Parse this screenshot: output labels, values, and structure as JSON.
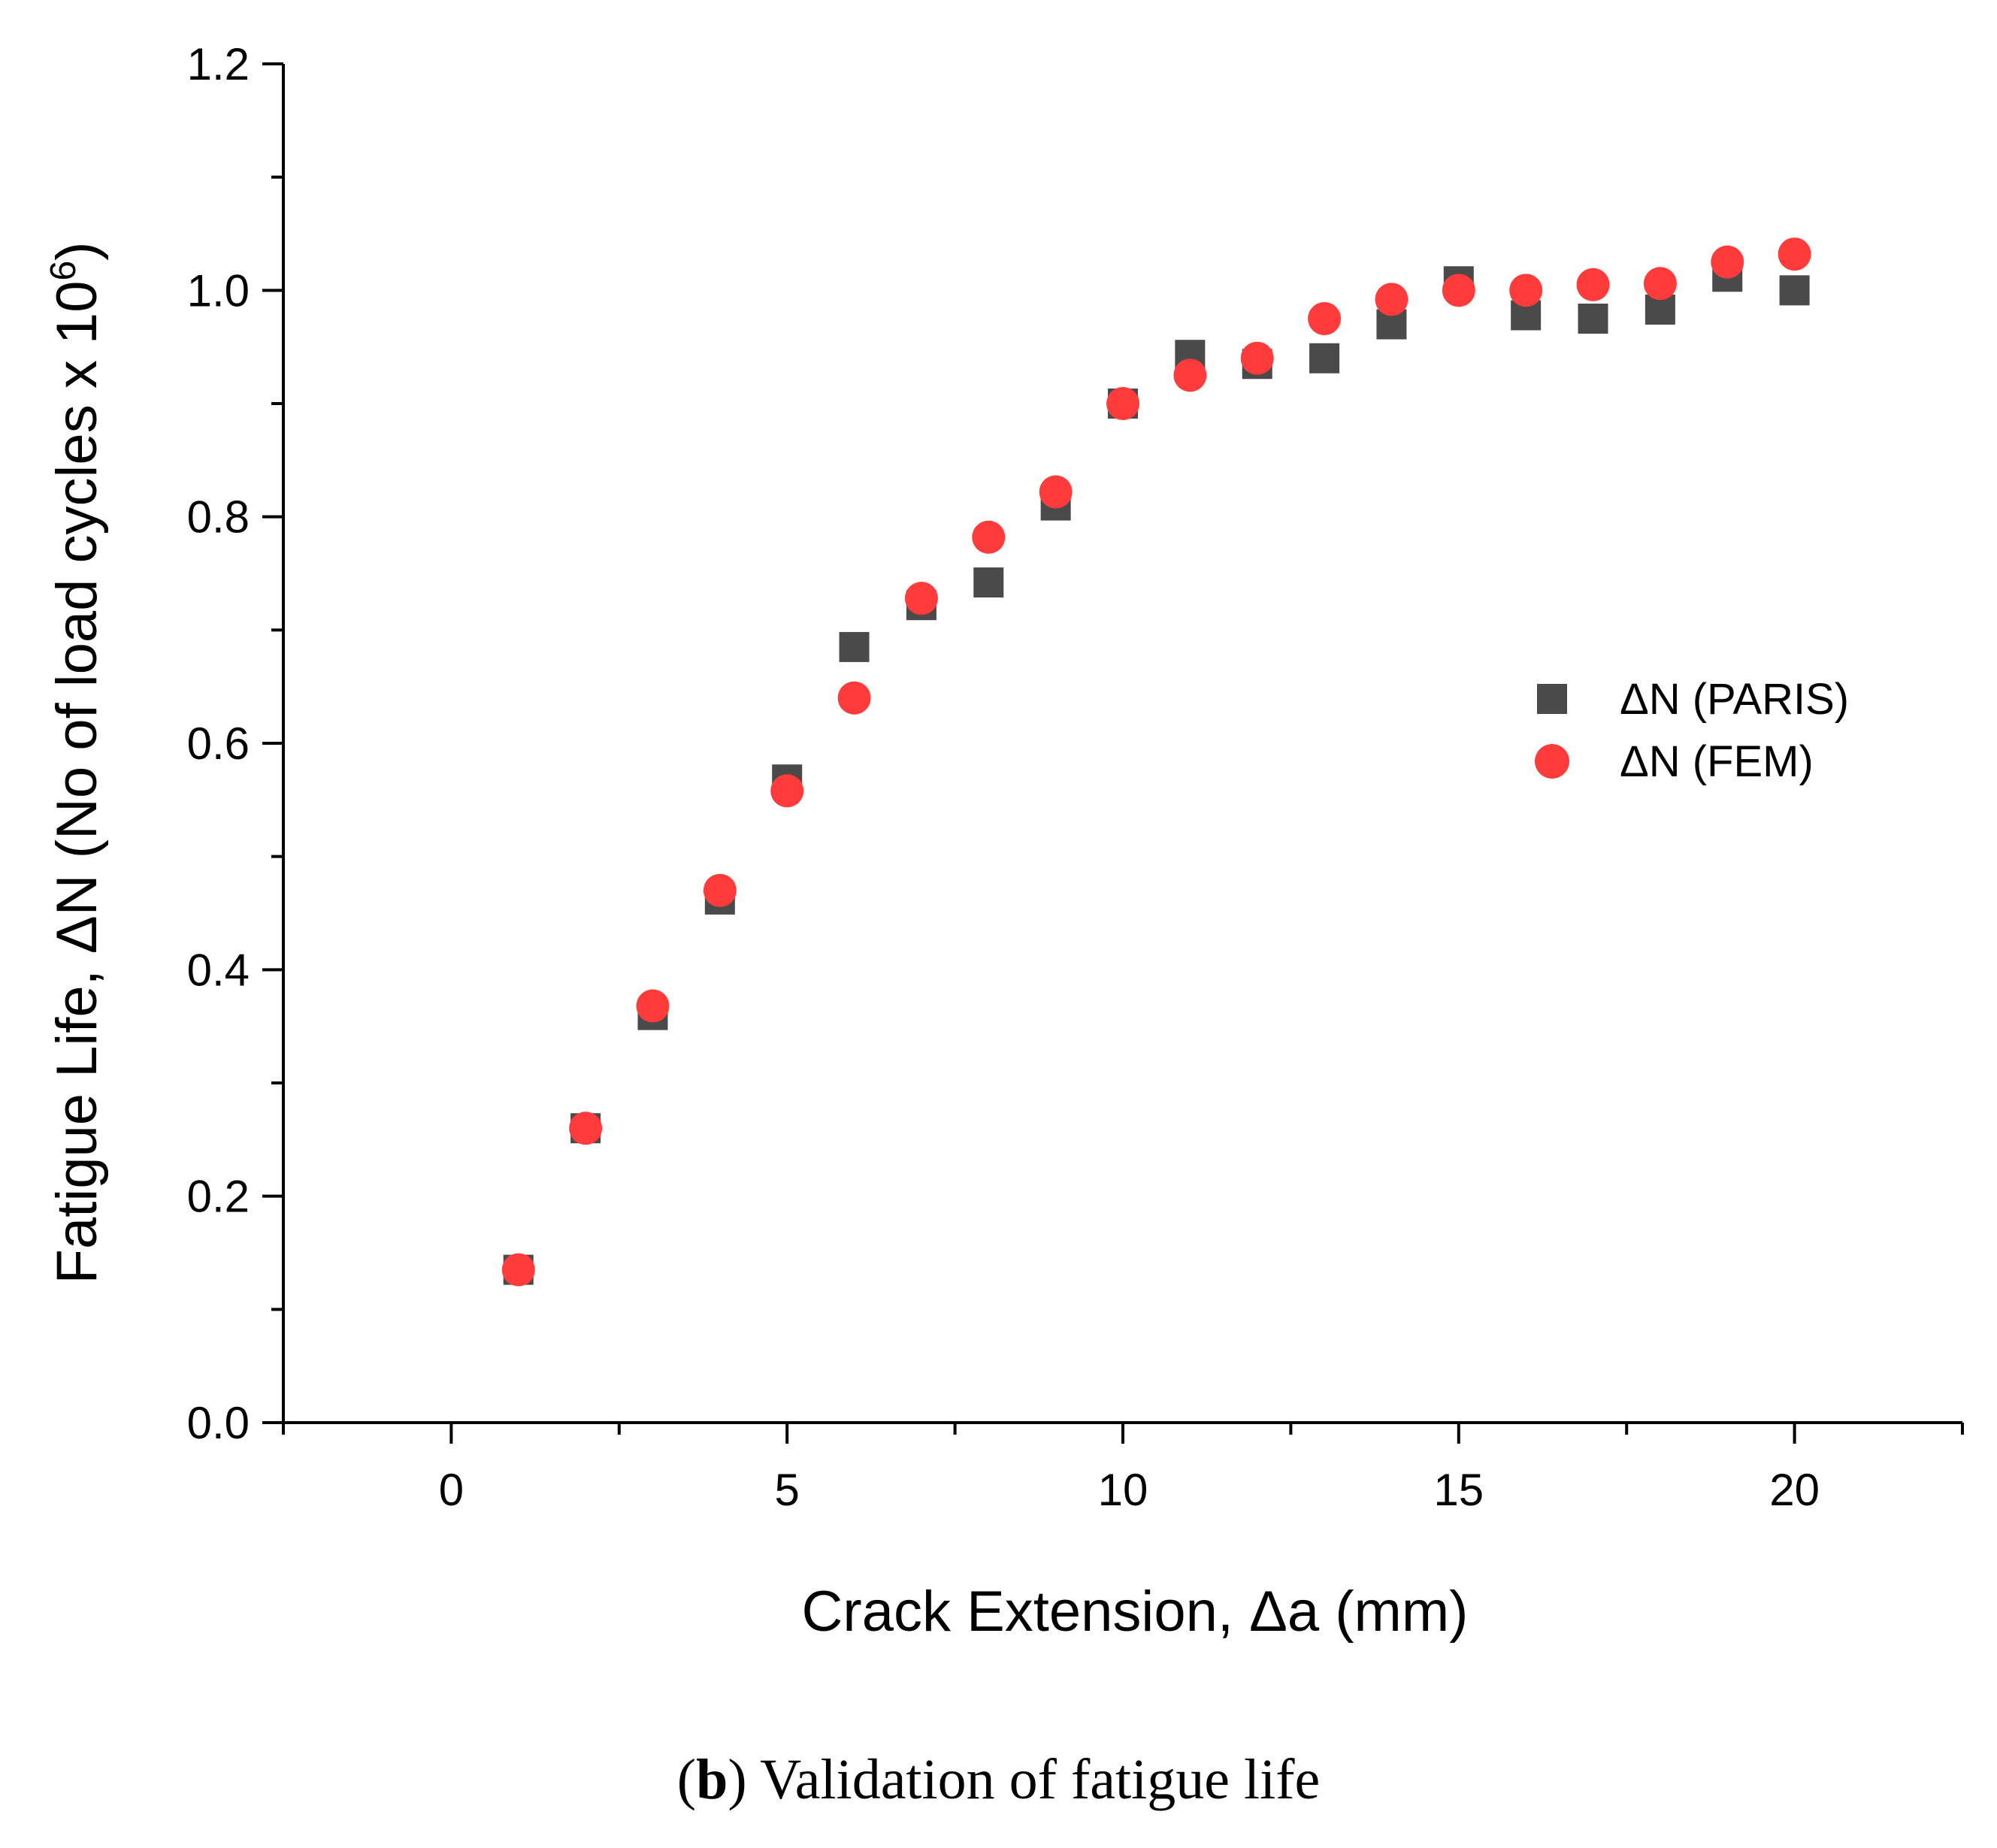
{
  "chart_data": {
    "type": "scatter",
    "title": "",
    "xlabel": "Crack Extension, Δa (mm)",
    "ylabel_main": "Fatigue Life, ΔN (No of load cycles x 10",
    "ylabel_sup": "6",
    "ylabel_close": ")",
    "xlim": [
      -2.5,
      22.5
    ],
    "ylim": [
      0.0,
      1.2
    ],
    "xticks": [
      0,
      5,
      10,
      15,
      20
    ],
    "yticks": [
      0.0,
      0.2,
      0.4,
      0.6,
      0.8,
      1.0,
      1.2
    ],
    "xtick_labels": [
      "0",
      "5",
      "10",
      "15",
      "20"
    ],
    "ytick_labels": [
      "0.0",
      "0.2",
      "0.4",
      "0.6",
      "0.8",
      "1.0",
      "1.2"
    ],
    "legend_position": "right",
    "series": [
      {
        "name": "ΔN (PARIS)",
        "marker": "square",
        "color": "#4a4a4a",
        "x": [
          1,
          2,
          3,
          4,
          5,
          6,
          7,
          8,
          9,
          10,
          11,
          12,
          13,
          14,
          15,
          16,
          17,
          18,
          19,
          20
        ],
        "y": [
          0.135,
          0.26,
          0.36,
          0.462,
          0.568,
          0.685,
          0.722,
          0.742,
          0.81,
          0.9,
          0.943,
          0.935,
          0.94,
          0.97,
          1.008,
          0.978,
          0.975,
          0.983,
          1.012,
          1.0
        ]
      },
      {
        "name": "ΔN (FEM)",
        "marker": "circle",
        "color": "#ff3b3b",
        "x": [
          1,
          2,
          3,
          4,
          5,
          6,
          7,
          8,
          9,
          10,
          11,
          12,
          13,
          14,
          15,
          16,
          17,
          18,
          19,
          20
        ],
        "y": [
          0.135,
          0.26,
          0.368,
          0.47,
          0.558,
          0.64,
          0.728,
          0.782,
          0.822,
          0.9,
          0.925,
          0.94,
          0.975,
          0.992,
          1.0,
          1.0,
          1.005,
          1.006,
          1.025,
          1.032
        ]
      }
    ]
  },
  "caption": {
    "open_paren": "(",
    "bold_letter": "b",
    "text": ") Validation of fatigue life"
  }
}
